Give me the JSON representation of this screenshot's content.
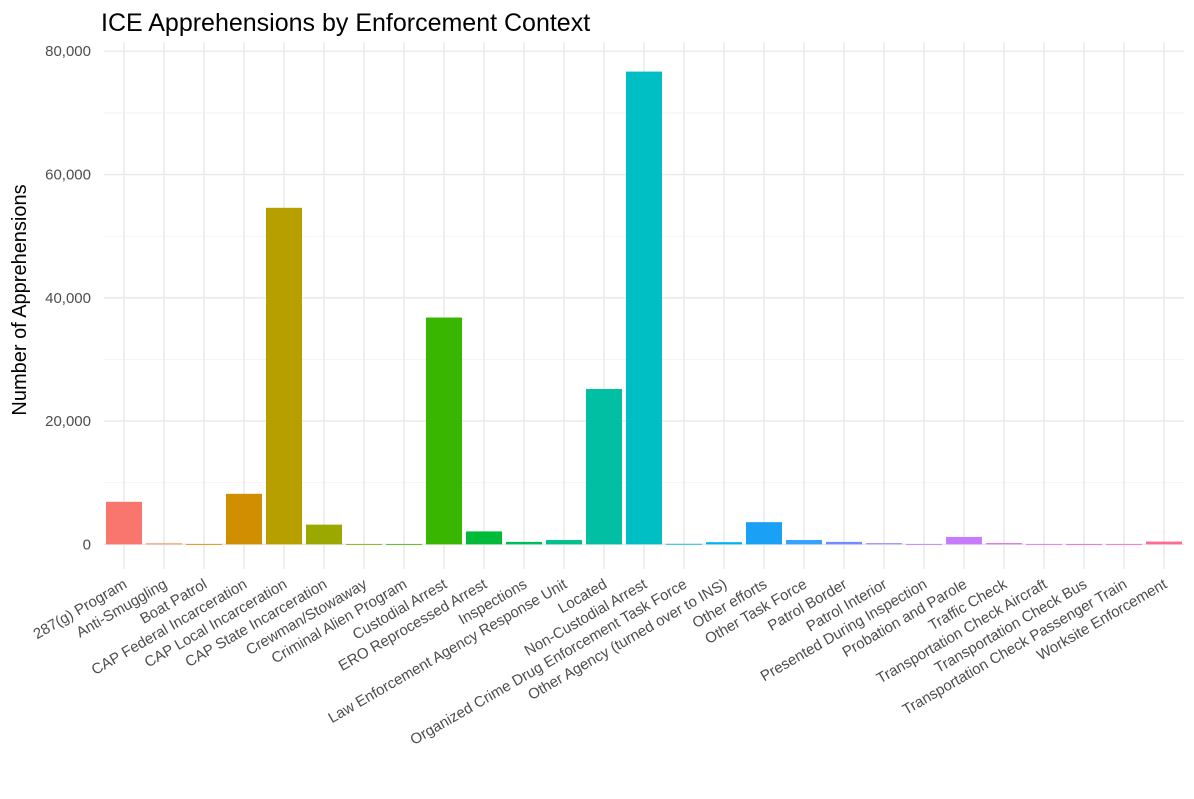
{
  "chart_data": {
    "type": "bar",
    "title": "ICE Apprehensions by Enforcement Context",
    "xlabel": "",
    "ylabel": "Number of Apprehensions",
    "ylim": [
      0,
      80000
    ],
    "yticks": [
      0,
      20000,
      40000,
      60000,
      80000
    ],
    "ytick_labels": [
      "0",
      "20,000",
      "40,000",
      "60,000",
      "80,000"
    ],
    "grid": true,
    "legend": "none",
    "categories": [
      "287(g) Program",
      "Anti-Smuggling",
      "Boat Patrol",
      "CAP Federal Incarceration",
      "CAP Local Incarceration",
      "CAP State Incarceration",
      "Crewman/Stowaway",
      "Criminal Alien Program",
      "Custodial Arrest",
      "ERO Reprocessed Arrest",
      "Inspections",
      "Law Enforcement Agency Response Unit",
      "Located",
      "Non-Custodial Arrest",
      "Organized Crime Drug Enforcement Task Force",
      "Other Agency (turned over to INS)",
      "Other efforts",
      "Other Task Force",
      "Patrol Border",
      "Patrol Interior",
      "Presented During Inspection",
      "Probation and Parole",
      "Traffic Check",
      "Transportation Check Aircraft",
      "Transportation Check Bus",
      "Transportation Check Passenger Train",
      "Worksite Enforcement"
    ],
    "values": [
      6900,
      150,
      60,
      8200,
      54600,
      3200,
      40,
      20,
      36800,
      2100,
      400,
      700,
      25200,
      76700,
      80,
      350,
      3600,
      700,
      400,
      200,
      30,
      1200,
      200,
      20,
      20,
      20,
      450
    ],
    "colors": [
      "#F8766D",
      "#EF7F49",
      "#E58700",
      "#D08E00",
      "#B79F00",
      "#9AA800",
      "#7CAE00",
      "#48B000",
      "#39B600",
      "#00BA38",
      "#00BD5C",
      "#00C08B",
      "#00BFA2",
      "#00BFC4",
      "#00B5D8",
      "#00B0F6",
      "#1AA0F4",
      "#35A2FF",
      "#6F8BFF",
      "#9590FF",
      "#BF7BFF",
      "#C77CFF",
      "#E268EF",
      "#E76BF3",
      "#F05ACC",
      "#FF61C3",
      "#FF6C91"
    ]
  }
}
